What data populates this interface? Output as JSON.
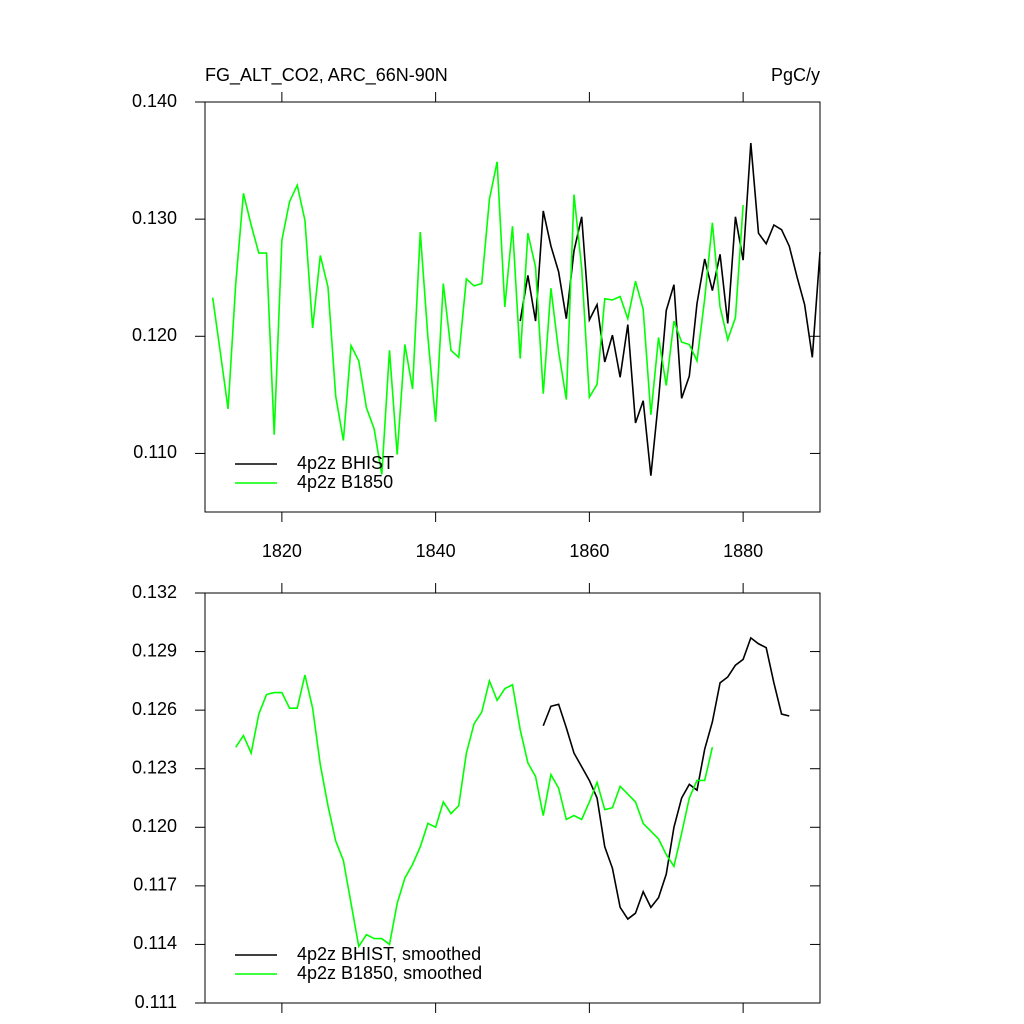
{
  "chart_data": [
    {
      "type": "line",
      "title": "FG_ALT_CO2, ARC_66N-90N",
      "title_right": "PgC/y",
      "xlim": [
        1810,
        1890
      ],
      "xticks": [
        1820,
        1840,
        1860,
        1880
      ],
      "ylim": [
        0.105,
        0.14
      ],
      "yticks": [
        {
          "value": 0.11,
          "label": "0.110"
        },
        {
          "value": 0.12,
          "label": "0.120"
        },
        {
          "value": 0.13,
          "label": "0.130"
        },
        {
          "value": 0.14,
          "label": "0.140"
        }
      ],
      "legend": "lower left",
      "series": [
        {
          "name": "4p2z BHIST",
          "color": "#000000",
          "x": [
            1851,
            1852,
            1853,
            1854,
            1855,
            1856,
            1857,
            1858,
            1859,
            1860,
            1861,
            1862,
            1863,
            1864,
            1865,
            1866,
            1867,
            1868,
            1869,
            1870,
            1871,
            1872,
            1873,
            1874,
            1875,
            1876,
            1877,
            1878,
            1879,
            1880,
            1881,
            1882,
            1883,
            1884,
            1885,
            1886,
            1887,
            1888,
            1889,
            1890
          ],
          "values": [
            0.1213,
            0.1252,
            0.1213,
            0.1307,
            0.1277,
            0.1255,
            0.1215,
            0.1273,
            0.1302,
            0.1214,
            0.1227,
            0.1178,
            0.1201,
            0.1165,
            0.121,
            0.1126,
            0.1145,
            0.1081,
            0.1146,
            0.1222,
            0.1244,
            0.1147,
            0.1166,
            0.1228,
            0.1266,
            0.1239,
            0.127,
            0.1211,
            0.1302,
            0.1265,
            0.1365,
            0.1288,
            0.1279,
            0.1295,
            0.1291,
            0.1277,
            0.1251,
            0.1227,
            0.1182,
            0.1272
          ]
        },
        {
          "name": "4p2z B1850",
          "color": "#00ff00",
          "x": [
            1811,
            1812,
            1813,
            1814,
            1815,
            1816,
            1817,
            1818,
            1819,
            1820,
            1821,
            1822,
            1823,
            1824,
            1825,
            1826,
            1827,
            1828,
            1829,
            1830,
            1831,
            1832,
            1833,
            1834,
            1835,
            1836,
            1837,
            1838,
            1839,
            1840,
            1841,
            1842,
            1843,
            1844,
            1845,
            1846,
            1847,
            1848,
            1849,
            1850,
            1851,
            1852,
            1853,
            1854,
            1855,
            1856,
            1857,
            1858,
            1859,
            1860,
            1861,
            1862,
            1863,
            1864,
            1865,
            1866,
            1867,
            1868,
            1869,
            1870,
            1871,
            1872,
            1873,
            1874,
            1875,
            1876,
            1877,
            1878,
            1879,
            1880
          ],
          "values": [
            0.1233,
            0.1186,
            0.1138,
            0.1245,
            0.1322,
            0.1295,
            0.1271,
            0.1271,
            0.1116,
            0.1282,
            0.1315,
            0.1329,
            0.1299,
            0.1207,
            0.1269,
            0.1242,
            0.1149,
            0.1111,
            0.1192,
            0.1179,
            0.1139,
            0.1121,
            0.1082,
            0.1188,
            0.1099,
            0.1193,
            0.1155,
            0.1289,
            0.1199,
            0.1127,
            0.1245,
            0.1188,
            0.1182,
            0.1249,
            0.1243,
            0.1245,
            0.1317,
            0.1349,
            0.1225,
            0.1294,
            0.1181,
            0.1288,
            0.1259,
            0.1151,
            0.1241,
            0.1187,
            0.1146,
            0.1321,
            0.1258,
            0.1148,
            0.1159,
            0.1232,
            0.1231,
            0.1234,
            0.1215,
            0.1247,
            0.1223,
            0.1133,
            0.1199,
            0.1158,
            0.1213,
            0.1195,
            0.1193,
            0.1179,
            0.1232,
            0.1297,
            0.1225,
            0.1197,
            0.1216,
            0.1312
          ]
        }
      ]
    },
    {
      "type": "line",
      "xlim": [
        1810,
        1890
      ],
      "xticks": [
        1820,
        1840,
        1860,
        1880
      ],
      "ylim": [
        0.111,
        0.132
      ],
      "yticks": [
        0.111,
        0.114,
        0.117,
        {
          "value": 0.12,
          "label": "0.120"
        },
        0.123,
        0.126,
        0.129,
        0.132
      ],
      "legend": "lower left",
      "series": [
        {
          "name": "4p2z BHIST, smoothed",
          "color": "#000000",
          "x": [
            1854,
            1855,
            1856,
            1857,
            1858,
            1859,
            1860,
            1861,
            1862,
            1863,
            1864,
            1865,
            1866,
            1867,
            1868,
            1869,
            1870,
            1871,
            1872,
            1873,
            1874,
            1875,
            1876,
            1877,
            1878,
            1879,
            1880,
            1881,
            1882,
            1883,
            1884,
            1885,
            1886
          ],
          "values": [
            0.1252,
            0.1262,
            0.1263,
            0.1251,
            0.1238,
            0.1231,
            0.1224,
            0.1215,
            0.119,
            0.1179,
            0.1159,
            0.1153,
            0.1156,
            0.1167,
            0.1159,
            0.1164,
            0.1176,
            0.12,
            0.1215,
            0.1222,
            0.1219,
            0.124,
            0.1254,
            0.1274,
            0.1277,
            0.1283,
            0.1286,
            0.1297,
            0.1294,
            0.1292,
            0.1274,
            0.1258,
            0.1257
          ]
        },
        {
          "name": "4p2z B1850, smoothed",
          "color": "#00ff00",
          "x": [
            1814,
            1815,
            1816,
            1817,
            1818,
            1819,
            1820,
            1821,
            1822,
            1823,
            1824,
            1825,
            1826,
            1827,
            1828,
            1829,
            1830,
            1831,
            1832,
            1833,
            1834,
            1835,
            1836,
            1837,
            1838,
            1839,
            1840,
            1841,
            1842,
            1843,
            1844,
            1845,
            1846,
            1847,
            1848,
            1849,
            1850,
            1851,
            1852,
            1853,
            1854,
            1855,
            1856,
            1857,
            1858,
            1859,
            1860,
            1861,
            1862,
            1863,
            1864,
            1865,
            1866,
            1867,
            1868,
            1869,
            1870,
            1871,
            1872,
            1873,
            1874,
            1875,
            1876
          ],
          "values": [
            0.1241,
            0.1247,
            0.1238,
            0.1258,
            0.1268,
            0.1269,
            0.1269,
            0.1261,
            0.1261,
            0.1278,
            0.1261,
            0.1232,
            0.1211,
            0.1193,
            0.1183,
            0.1161,
            0.1139,
            0.1145,
            0.1143,
            0.1143,
            0.114,
            0.1161,
            0.1174,
            0.1181,
            0.119,
            0.1202,
            0.12,
            0.1213,
            0.1207,
            0.1211,
            0.1238,
            0.1253,
            0.1259,
            0.1275,
            0.1265,
            0.1271,
            0.1273,
            0.125,
            0.1233,
            0.1226,
            0.1206,
            0.1227,
            0.122,
            0.1204,
            0.1206,
            0.1204,
            0.1213,
            0.1223,
            0.1209,
            0.121,
            0.1221,
            0.1217,
            0.1213,
            0.1202,
            0.1198,
            0.1194,
            0.1186,
            0.118,
            0.1197,
            0.1215,
            0.1224,
            0.1224,
            0.1241
          ]
        }
      ]
    }
  ]
}
